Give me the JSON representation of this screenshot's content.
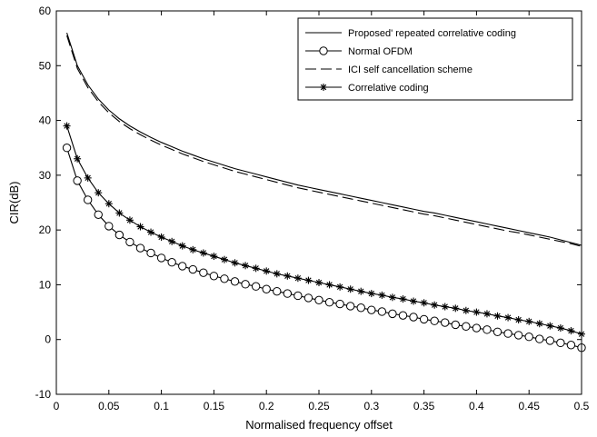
{
  "chart_data": {
    "type": "line",
    "xlabel": "Normalised frequency offset",
    "ylabel": "CIR(dB)",
    "xlim": [
      0,
      0.5
    ],
    "ylim": [
      -10,
      60
    ],
    "grid": false,
    "legend_position": "top-right",
    "x_ticks": [
      "0",
      "0.05",
      "0.1",
      "0.15",
      "0.2",
      "0.25",
      "0.3",
      "0.35",
      "0.4",
      "0.45",
      "0.5"
    ],
    "y_ticks": [
      "-10",
      "0",
      "10",
      "20",
      "30",
      "40",
      "50",
      "60"
    ],
    "x": [
      0.01,
      0.02,
      0.03,
      0.04,
      0.05,
      0.06,
      0.07,
      0.08,
      0.09,
      0.1,
      0.11,
      0.12,
      0.13,
      0.14,
      0.15,
      0.16,
      0.17,
      0.18,
      0.19,
      0.2,
      0.21,
      0.22,
      0.23,
      0.24,
      0.25,
      0.26,
      0.27,
      0.28,
      0.29,
      0.3,
      0.31,
      0.32,
      0.33,
      0.34,
      0.35,
      0.36,
      0.37,
      0.38,
      0.39,
      0.4,
      0.41,
      0.42,
      0.43,
      0.44,
      0.45,
      0.46,
      0.47,
      0.48,
      0.49,
      0.5
    ],
    "series": [
      {
        "name": "Proposed repeated correlative coding",
        "style": "solid",
        "marker": "none",
        "values": [
          56.0,
          50.0,
          46.5,
          43.9,
          41.9,
          40.3,
          39.0,
          37.9,
          36.9,
          36.0,
          35.2,
          34.4,
          33.7,
          33.0,
          32.4,
          31.8,
          31.2,
          30.7,
          30.2,
          29.7,
          29.2,
          28.7,
          28.2,
          27.8,
          27.4,
          27.0,
          26.6,
          26.2,
          25.8,
          25.4,
          25.0,
          24.6,
          24.2,
          23.8,
          23.4,
          23.1,
          22.7,
          22.3,
          21.9,
          21.5,
          21.1,
          20.7,
          20.3,
          19.9,
          19.5,
          19.1,
          18.7,
          18.2,
          17.7,
          17.2
        ]
      },
      {
        "name": "Normal OFDM",
        "style": "solid",
        "marker": "circle",
        "values": [
          35.0,
          29.0,
          25.5,
          22.8,
          20.7,
          19.1,
          17.8,
          16.7,
          15.8,
          14.9,
          14.1,
          13.4,
          12.8,
          12.2,
          11.6,
          11.1,
          10.6,
          10.1,
          9.7,
          9.2,
          8.8,
          8.4,
          8.0,
          7.6,
          7.2,
          6.8,
          6.5,
          6.1,
          5.8,
          5.4,
          5.1,
          4.7,
          4.4,
          4.1,
          3.7,
          3.4,
          3.1,
          2.7,
          2.4,
          2.1,
          1.8,
          1.4,
          1.1,
          0.8,
          0.5,
          0.1,
          -0.2,
          -0.6,
          -1.0,
          -1.5
        ]
      },
      {
        "name": "ICI self cancellation scheme",
        "style": "dashed",
        "marker": "none",
        "values": [
          55.5,
          49.5,
          46.0,
          43.4,
          41.4,
          39.8,
          38.5,
          37.4,
          36.4,
          35.5,
          34.7,
          33.9,
          33.2,
          32.5,
          31.9,
          31.3,
          30.7,
          30.2,
          29.7,
          29.2,
          28.7,
          28.2,
          27.7,
          27.3,
          26.9,
          26.5,
          26.1,
          25.7,
          25.3,
          24.9,
          24.5,
          24.1,
          23.7,
          23.3,
          22.9,
          22.6,
          22.2,
          21.8,
          21.4,
          21.0,
          20.6,
          20.2,
          19.8,
          19.5,
          19.1,
          18.7,
          18.3,
          17.9,
          17.5,
          17.0
        ]
      },
      {
        "name": "Correlative coding",
        "style": "solid",
        "marker": "star",
        "values": [
          39.0,
          33.0,
          29.5,
          26.8,
          24.8,
          23.1,
          21.8,
          20.6,
          19.6,
          18.7,
          17.9,
          17.1,
          16.4,
          15.8,
          15.2,
          14.6,
          14.0,
          13.5,
          13.0,
          12.5,
          12.0,
          11.6,
          11.2,
          10.8,
          10.4,
          10.0,
          9.6,
          9.2,
          8.8,
          8.4,
          8.1,
          7.7,
          7.4,
          7.0,
          6.7,
          6.3,
          6.0,
          5.7,
          5.3,
          5.0,
          4.7,
          4.3,
          4.0,
          3.6,
          3.3,
          2.9,
          2.5,
          2.1,
          1.6,
          1.0
        ]
      }
    ],
    "legend": [
      "Proposed' repeated correlative coding",
      "Normal OFDM",
      "ICI self cancellation scheme",
      "Correlative coding"
    ]
  }
}
